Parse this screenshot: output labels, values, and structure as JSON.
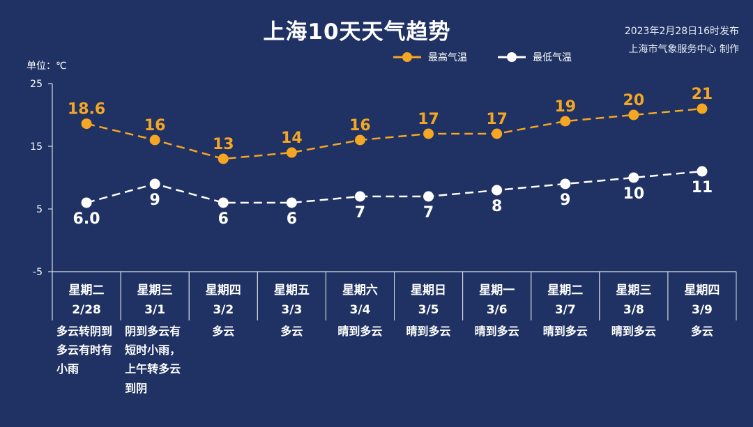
{
  "header": {
    "title": "上海10天天气趋势",
    "publish_time": "2023年2月28日16时发布",
    "publisher": "上海市气象服务中心 制作",
    "unit": "单位：℃"
  },
  "colors": {
    "background": "#1f3263",
    "high": "#f5a623",
    "low": "#ffffff",
    "axis": "#d9dee8"
  },
  "chart_data": {
    "type": "line",
    "ylim": [
      -5,
      25
    ],
    "yticks": [
      "25",
      "15",
      "5",
      "-5"
    ],
    "ytick_values": [
      25,
      15,
      5,
      -5
    ],
    "categories": [
      {
        "weekday": "星期二",
        "date": "2/28",
        "weather": [
          "多云转阴到",
          "多云有时有",
          "小雨"
        ]
      },
      {
        "weekday": "星期三",
        "date": "3/1",
        "weather": [
          "阴到多云有",
          "短时小雨，",
          "上午转多云",
          "到阴"
        ]
      },
      {
        "weekday": "星期四",
        "date": "3/2",
        "weather": [
          "多云"
        ]
      },
      {
        "weekday": "星期五",
        "date": "3/3",
        "weather": [
          "多云"
        ]
      },
      {
        "weekday": "星期六",
        "date": "3/4",
        "weather": [
          "晴到多云"
        ]
      },
      {
        "weekday": "星期日",
        "date": "3/5",
        "weather": [
          "晴到多云"
        ]
      },
      {
        "weekday": "星期一",
        "date": "3/6",
        "weather": [
          "晴到多云"
        ]
      },
      {
        "weekday": "星期二",
        "date": "3/7",
        "weather": [
          "晴到多云"
        ]
      },
      {
        "weekday": "星期三",
        "date": "3/8",
        "weather": [
          "晴到多云"
        ]
      },
      {
        "weekday": "星期四",
        "date": "3/9",
        "weather": [
          "多云"
        ]
      }
    ],
    "series": [
      {
        "name": "最高气温",
        "values": [
          18.6,
          16,
          13,
          14,
          16,
          17,
          17,
          19,
          20,
          21
        ],
        "labels": [
          "18.6",
          "16",
          "13",
          "14",
          "16",
          "17",
          "17",
          "19",
          "20",
          "21"
        ]
      },
      {
        "name": "最低气温",
        "values": [
          6.0,
          9,
          6,
          6,
          7,
          7,
          8,
          9,
          10,
          11
        ],
        "labels": [
          "6.0",
          "9",
          "6",
          "6",
          "7",
          "7",
          "8",
          "9",
          "10",
          "11"
        ]
      }
    ],
    "grid": false,
    "legend_position": "top"
  }
}
